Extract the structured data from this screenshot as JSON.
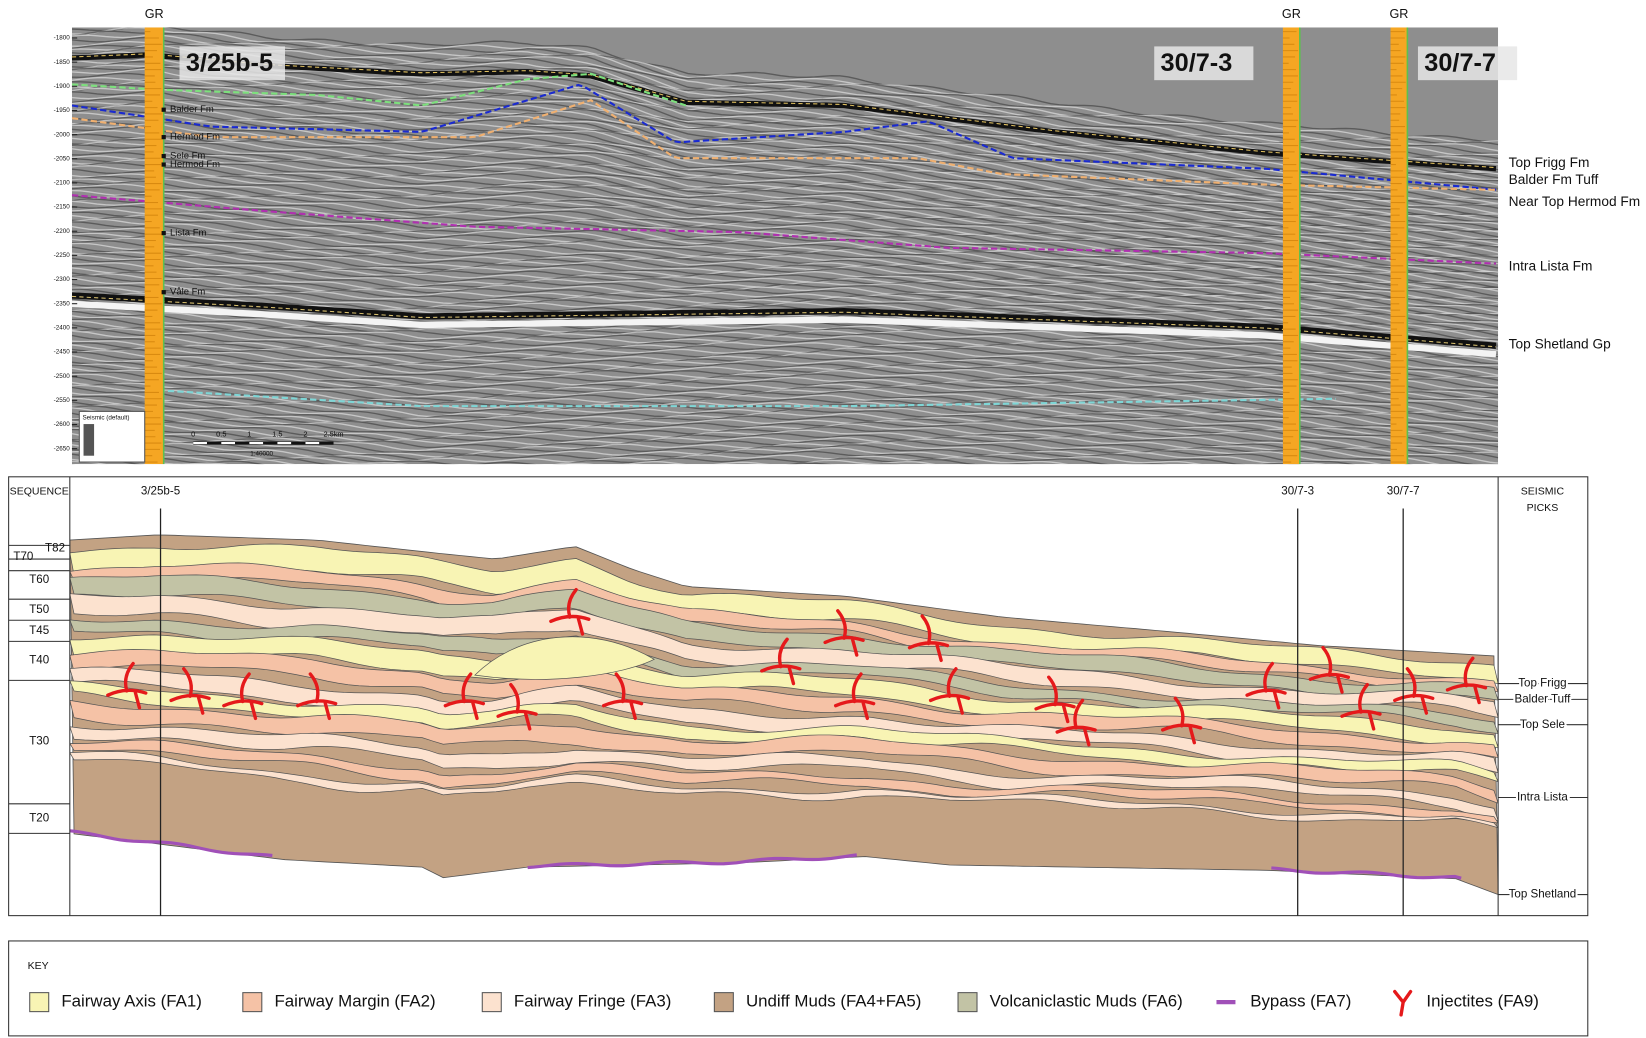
{
  "seismic": {
    "gr_labels": [
      "GR",
      "GR",
      "GR"
    ],
    "wells": [
      "3/25b-5",
      "30/7-3",
      "30/7-7"
    ],
    "depth_ticks": [
      "-1800",
      "-1850",
      "-1900",
      "-1950",
      "-2000",
      "-2050",
      "-2100",
      "-2150",
      "-2200",
      "-2250",
      "-2300",
      "-2350",
      "-2400",
      "-2450",
      "-2500",
      "-2550",
      "-2600",
      "-2650"
    ],
    "log_tops": [
      "Balder Fm",
      "Hermod Fm",
      "Sele Fm",
      "Hermod Fm",
      "Lista Fm",
      "Våle Fm"
    ],
    "picks": [
      "Top Frigg Fm",
      "Balder Fm Tuff",
      "Near Top Hermod Fm",
      "Intra Lista Fm",
      "Top Shetland Gp"
    ],
    "legend_title": "Seismic (default)",
    "scale_labels": [
      "0",
      "0.5",
      "1",
      "1.5",
      "2",
      "2.5km"
    ],
    "scale_ratio": "1:40000"
  },
  "section": {
    "sequence_header": "SEQUENCE",
    "sequences": [
      "T82",
      "T70",
      "T60",
      "T50",
      "T45",
      "T40",
      "T30",
      "T20"
    ],
    "wells": [
      "3/25b-5",
      "30/7-3",
      "30/7-7"
    ],
    "picks_header": [
      "SEISMIC",
      "PICKS"
    ],
    "picks": [
      "Top Frigg",
      "Balder Tuff",
      "Top Sele",
      "Intra Lista",
      "Top Shetland"
    ]
  },
  "key": {
    "title": "KEY",
    "items": [
      "Fairway Axis (FA1)",
      "Fairway Margin (FA2)",
      "Fairway Fringe (FA3)",
      "Undiff Muds (FA4+FA5)",
      "Volcaniclastic Muds (FA6)",
      "Bypass (FA7)",
      "Injectites (FA9)"
    ]
  }
}
